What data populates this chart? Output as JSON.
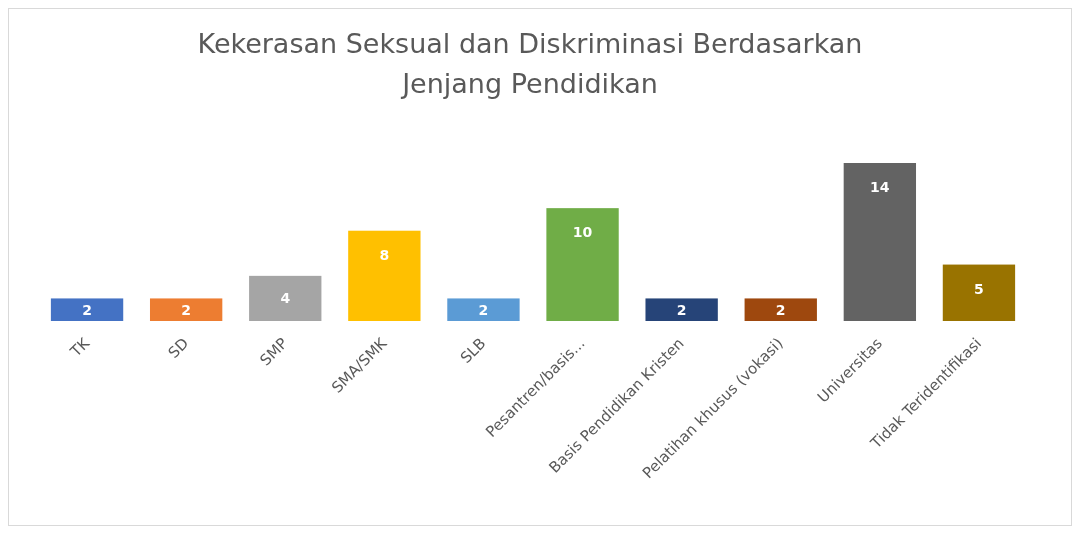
{
  "chart_data": {
    "type": "bar",
    "title": "Kekerasan Seksual dan Diskriminasi Berdasarkan\nJenjang Pendidikan",
    "categories": [
      "TK",
      "SD",
      "SMP",
      "SMA/SMK",
      "SLB",
      "Pesantren/basis...",
      "Basis Pendidikan Kristen",
      "Pelatihan khusus (vokasi)",
      "Universitas",
      "Tidak Teridentifikasi"
    ],
    "values": [
      2,
      2,
      4,
      8,
      2,
      10,
      2,
      2,
      14,
      5
    ],
    "colors": [
      "#4472c4",
      "#ed7d31",
      "#a5a5a5",
      "#ffc000",
      "#5b9bd5",
      "#70ad47",
      "#264478",
      "#9e480e",
      "#636363",
      "#997300"
    ],
    "data_labels": true
  }
}
